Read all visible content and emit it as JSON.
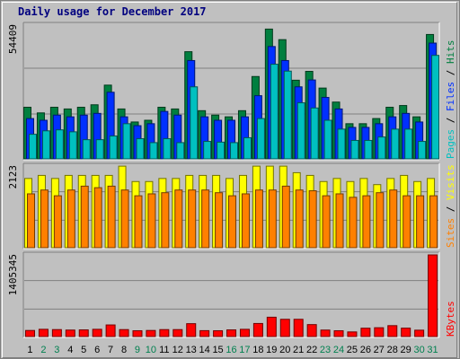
{
  "title": "Daily usage for December 2017",
  "colors": {
    "pages": "#00c0c0",
    "files": "#0030ff",
    "hits": "#007f3f",
    "sites": "#ff8000",
    "visits": "#ffff00",
    "kbytes": "#ff0000",
    "weekday_label": "#000000",
    "weekend_label": "#00804f"
  },
  "chart_data": [
    {
      "type": "bar",
      "categories": [
        "1",
        "2",
        "3",
        "4",
        "5",
        "6",
        "7",
        "8",
        "9",
        "10",
        "11",
        "12",
        "13",
        "14",
        "15",
        "16",
        "17",
        "18",
        "19",
        "20",
        "21",
        "22",
        "23",
        "24",
        "25",
        "26",
        "27",
        "28",
        "29",
        "30",
        "31"
      ],
      "weekend_days": [
        "2",
        "3",
        "9",
        "10",
        "16",
        "17",
        "23",
        "24",
        "30",
        "31"
      ],
      "ymax_label": "54409",
      "ylim": [
        0,
        54409
      ],
      "legend": [
        "Pages",
        "Files",
        "Hits"
      ],
      "series": [
        {
          "name": "Hits",
          "values": [
            21000,
            18700,
            21000,
            20300,
            21000,
            22000,
            30000,
            20300,
            15000,
            15700,
            21000,
            20300,
            43600,
            19600,
            17800,
            17100,
            19600,
            33500,
            52800,
            48500,
            32000,
            35600,
            28800,
            23100,
            14300,
            14300,
            16400,
            21000,
            21700,
            17100,
            50600
          ]
        },
        {
          "name": "Files",
          "values": [
            16400,
            15700,
            17800,
            17100,
            17800,
            18500,
            27100,
            17100,
            13500,
            14300,
            19300,
            17800,
            40000,
            17100,
            15700,
            15700,
            17100,
            25700,
            45700,
            40000,
            29300,
            32100,
            25000,
            20300,
            12800,
            12800,
            14300,
            17100,
            18500,
            15000,
            47100
          ]
        },
        {
          "name": "Pages",
          "values": [
            10000,
            11400,
            11800,
            11000,
            7800,
            7800,
            9300,
            14300,
            8200,
            6600,
            8200,
            6600,
            29300,
            7100,
            6800,
            6600,
            8600,
            16400,
            38500,
            35700,
            22800,
            20700,
            15700,
            12100,
            7500,
            7500,
            8900,
            12100,
            12100,
            7100,
            42100
          ]
        }
      ]
    },
    {
      "type": "bar",
      "categories": [
        "1",
        "2",
        "3",
        "4",
        "5",
        "6",
        "7",
        "8",
        "9",
        "10",
        "11",
        "12",
        "13",
        "14",
        "15",
        "16",
        "17",
        "18",
        "19",
        "20",
        "21",
        "22",
        "23",
        "24",
        "25",
        "26",
        "27",
        "28",
        "29",
        "30",
        "31"
      ],
      "ymax_label": "2123",
      "ylim": [
        0,
        2123
      ],
      "legend": [
        "Sites",
        "Visits"
      ],
      "series": [
        {
          "name": "Visits",
          "values": [
            1800,
            1880,
            1800,
            1880,
            1880,
            1880,
            1880,
            2120,
            1720,
            1720,
            1800,
            1800,
            1880,
            1880,
            1880,
            1800,
            1880,
            2120,
            2120,
            2120,
            1950,
            1880,
            1720,
            1800,
            1720,
            1800,
            1640,
            1800,
            1880,
            1720,
            1800
          ]
        },
        {
          "name": "Sites",
          "values": [
            1400,
            1500,
            1350,
            1500,
            1600,
            1560,
            1600,
            1500,
            1350,
            1400,
            1430,
            1500,
            1500,
            1500,
            1430,
            1350,
            1400,
            1500,
            1500,
            1600,
            1500,
            1480,
            1350,
            1400,
            1310,
            1350,
            1430,
            1500,
            1350,
            1350,
            1350
          ]
        }
      ]
    },
    {
      "type": "bar",
      "categories": [
        "1",
        "2",
        "3",
        "4",
        "5",
        "6",
        "7",
        "8",
        "9",
        "10",
        "11",
        "12",
        "13",
        "14",
        "15",
        "16",
        "17",
        "18",
        "19",
        "20",
        "21",
        "22",
        "23",
        "24",
        "25",
        "26",
        "27",
        "28",
        "29",
        "30",
        "31"
      ],
      "ymax_label": "1405345",
      "ylim": [
        0,
        1405345
      ],
      "legend": [
        "KBytes"
      ],
      "series": [
        {
          "name": "KBytes",
          "values": [
            105000,
            125000,
            120000,
            112000,
            115000,
            125000,
            200000,
            120000,
            100000,
            105000,
            120000,
            120000,
            222000,
            102000,
            100000,
            115000,
            125000,
            225000,
            333000,
            297000,
            297000,
            206000,
            112000,
            100000,
            80000,
            144000,
            152000,
            188000,
            145000,
            110000,
            1405000
          ]
        }
      ]
    }
  ]
}
